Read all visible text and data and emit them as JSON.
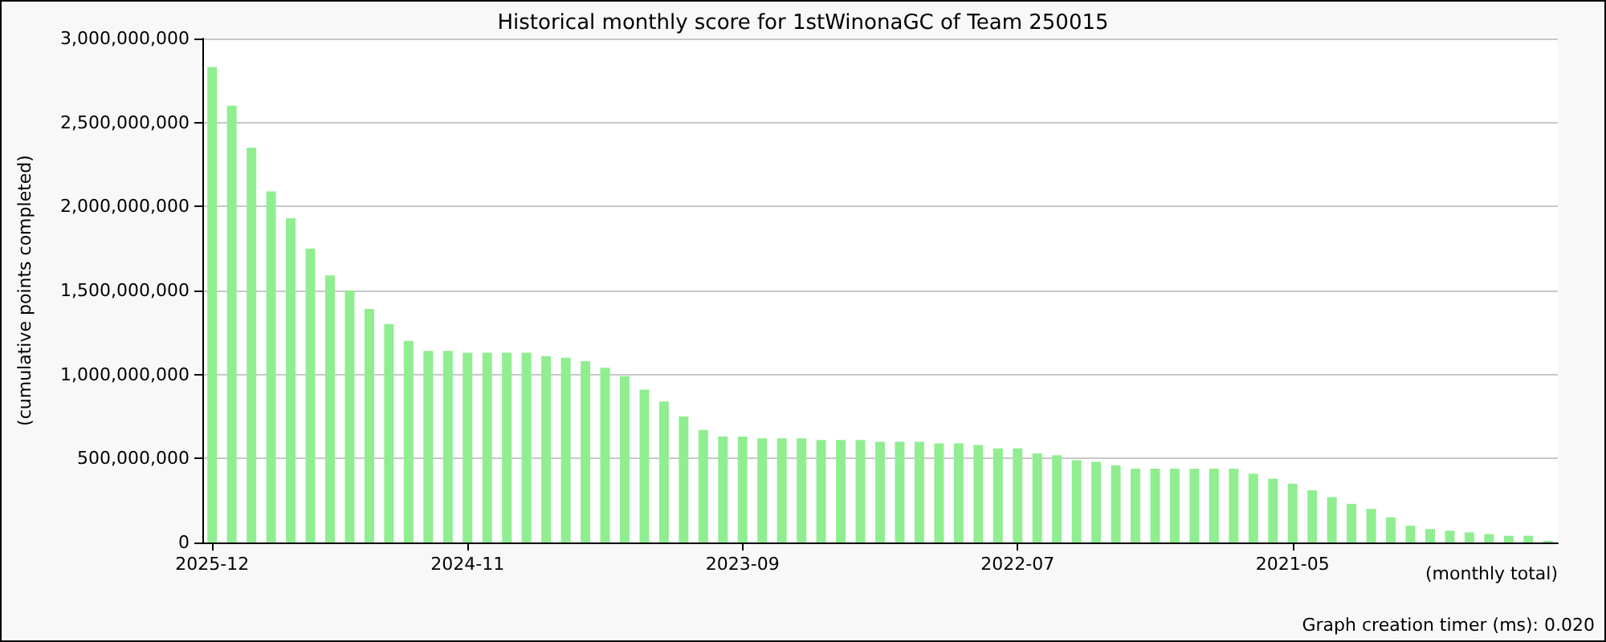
{
  "chart_data": {
    "type": "bar",
    "title": "Historical monthly score for 1stWinonaGC of Team 250015",
    "xlabel": "(monthly total)",
    "ylabel": "(cumulative points completed)",
    "annotations": [
      "Graph creation timer (ms): 0.020"
    ],
    "categories": [
      "2025-12",
      null,
      null,
      null,
      null,
      null,
      null,
      null,
      null,
      null,
      null,
      null,
      null,
      "2024-11",
      null,
      null,
      null,
      null,
      null,
      null,
      null,
      null,
      null,
      null,
      null,
      null,
      null,
      "2023-09",
      null,
      null,
      null,
      null,
      null,
      null,
      null,
      null,
      null,
      null,
      null,
      null,
      null,
      "2022-07",
      null,
      null,
      null,
      null,
      null,
      null,
      null,
      null,
      null,
      null,
      null,
      null,
      null,
      "2021-05",
      null,
      null,
      null,
      null,
      null,
      null,
      null,
      null,
      null,
      null,
      null,
      null,
      null
    ],
    "values": [
      2830000000,
      2600000000,
      2350000000,
      2090000000,
      1930000000,
      1750000000,
      1590000000,
      1500000000,
      1390000000,
      1300000000,
      1200000000,
      1140000000,
      1140000000,
      1130000000,
      1130000000,
      1130000000,
      1130000000,
      1110000000,
      1100000000,
      1080000000,
      1040000000,
      990000000,
      910000000,
      840000000,
      750000000,
      670000000,
      630000000,
      630000000,
      620000000,
      620000000,
      620000000,
      610000000,
      610000000,
      610000000,
      600000000,
      600000000,
      600000000,
      590000000,
      590000000,
      580000000,
      560000000,
      560000000,
      530000000,
      520000000,
      490000000,
      480000000,
      460000000,
      440000000,
      440000000,
      440000000,
      440000000,
      440000000,
      440000000,
      410000000,
      380000000,
      350000000,
      310000000,
      270000000,
      230000000,
      200000000,
      150000000,
      100000000,
      80000000,
      70000000,
      60000000,
      50000000,
      40000000,
      40000000,
      10000000
    ],
    "color": "#90ee90",
    "ylim": [
      0,
      3000000000
    ],
    "yticks": [
      {
        "value": 0,
        "label": "0"
      },
      {
        "value": 500000000,
        "label": "500,000,000"
      },
      {
        "value": 1000000000,
        "label": "1,000,000,000"
      },
      {
        "value": 1500000000,
        "label": "1,500,000,000"
      },
      {
        "value": 2000000000,
        "label": "2,000,000,000"
      },
      {
        "value": 2500000000,
        "label": "2,500,000,000"
      },
      {
        "value": 3000000000,
        "label": "3,000,000,000"
      }
    ],
    "grid": "y"
  }
}
